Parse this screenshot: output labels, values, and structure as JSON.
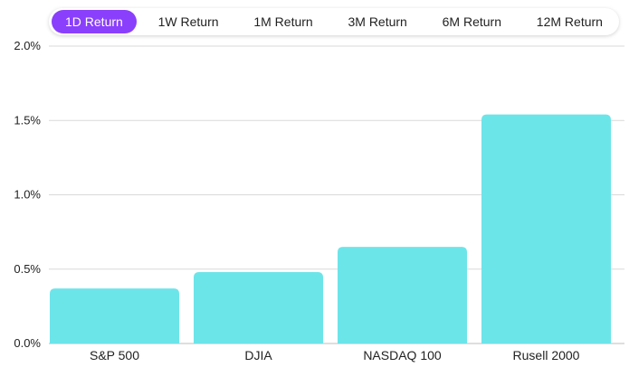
{
  "tabs": [
    {
      "label": "1D Return",
      "active": true
    },
    {
      "label": "1W Return",
      "active": false
    },
    {
      "label": "1M Return",
      "active": false
    },
    {
      "label": "3M Return",
      "active": false
    },
    {
      "label": "6M Return",
      "active": false
    },
    {
      "label": "12M Return",
      "active": false
    }
  ],
  "colors": {
    "accent": "#8a3ffc",
    "bar": "#6ce5e9",
    "grid": "#d9d9d9"
  },
  "chart_data": {
    "type": "bar",
    "categories": [
      "S&P 500",
      "DJIA",
      "NASDAQ 100",
      "Rusell 2000"
    ],
    "values": [
      0.37,
      0.48,
      0.65,
      1.54
    ],
    "yticks": [
      "0.0%",
      "0.5%",
      "1.0%",
      "1.5%",
      "2.0%"
    ],
    "ytick_values": [
      0,
      0.5,
      1.0,
      1.5,
      2.0
    ],
    "ylim": [
      0,
      2.0
    ],
    "grid": true,
    "legend": "none"
  }
}
